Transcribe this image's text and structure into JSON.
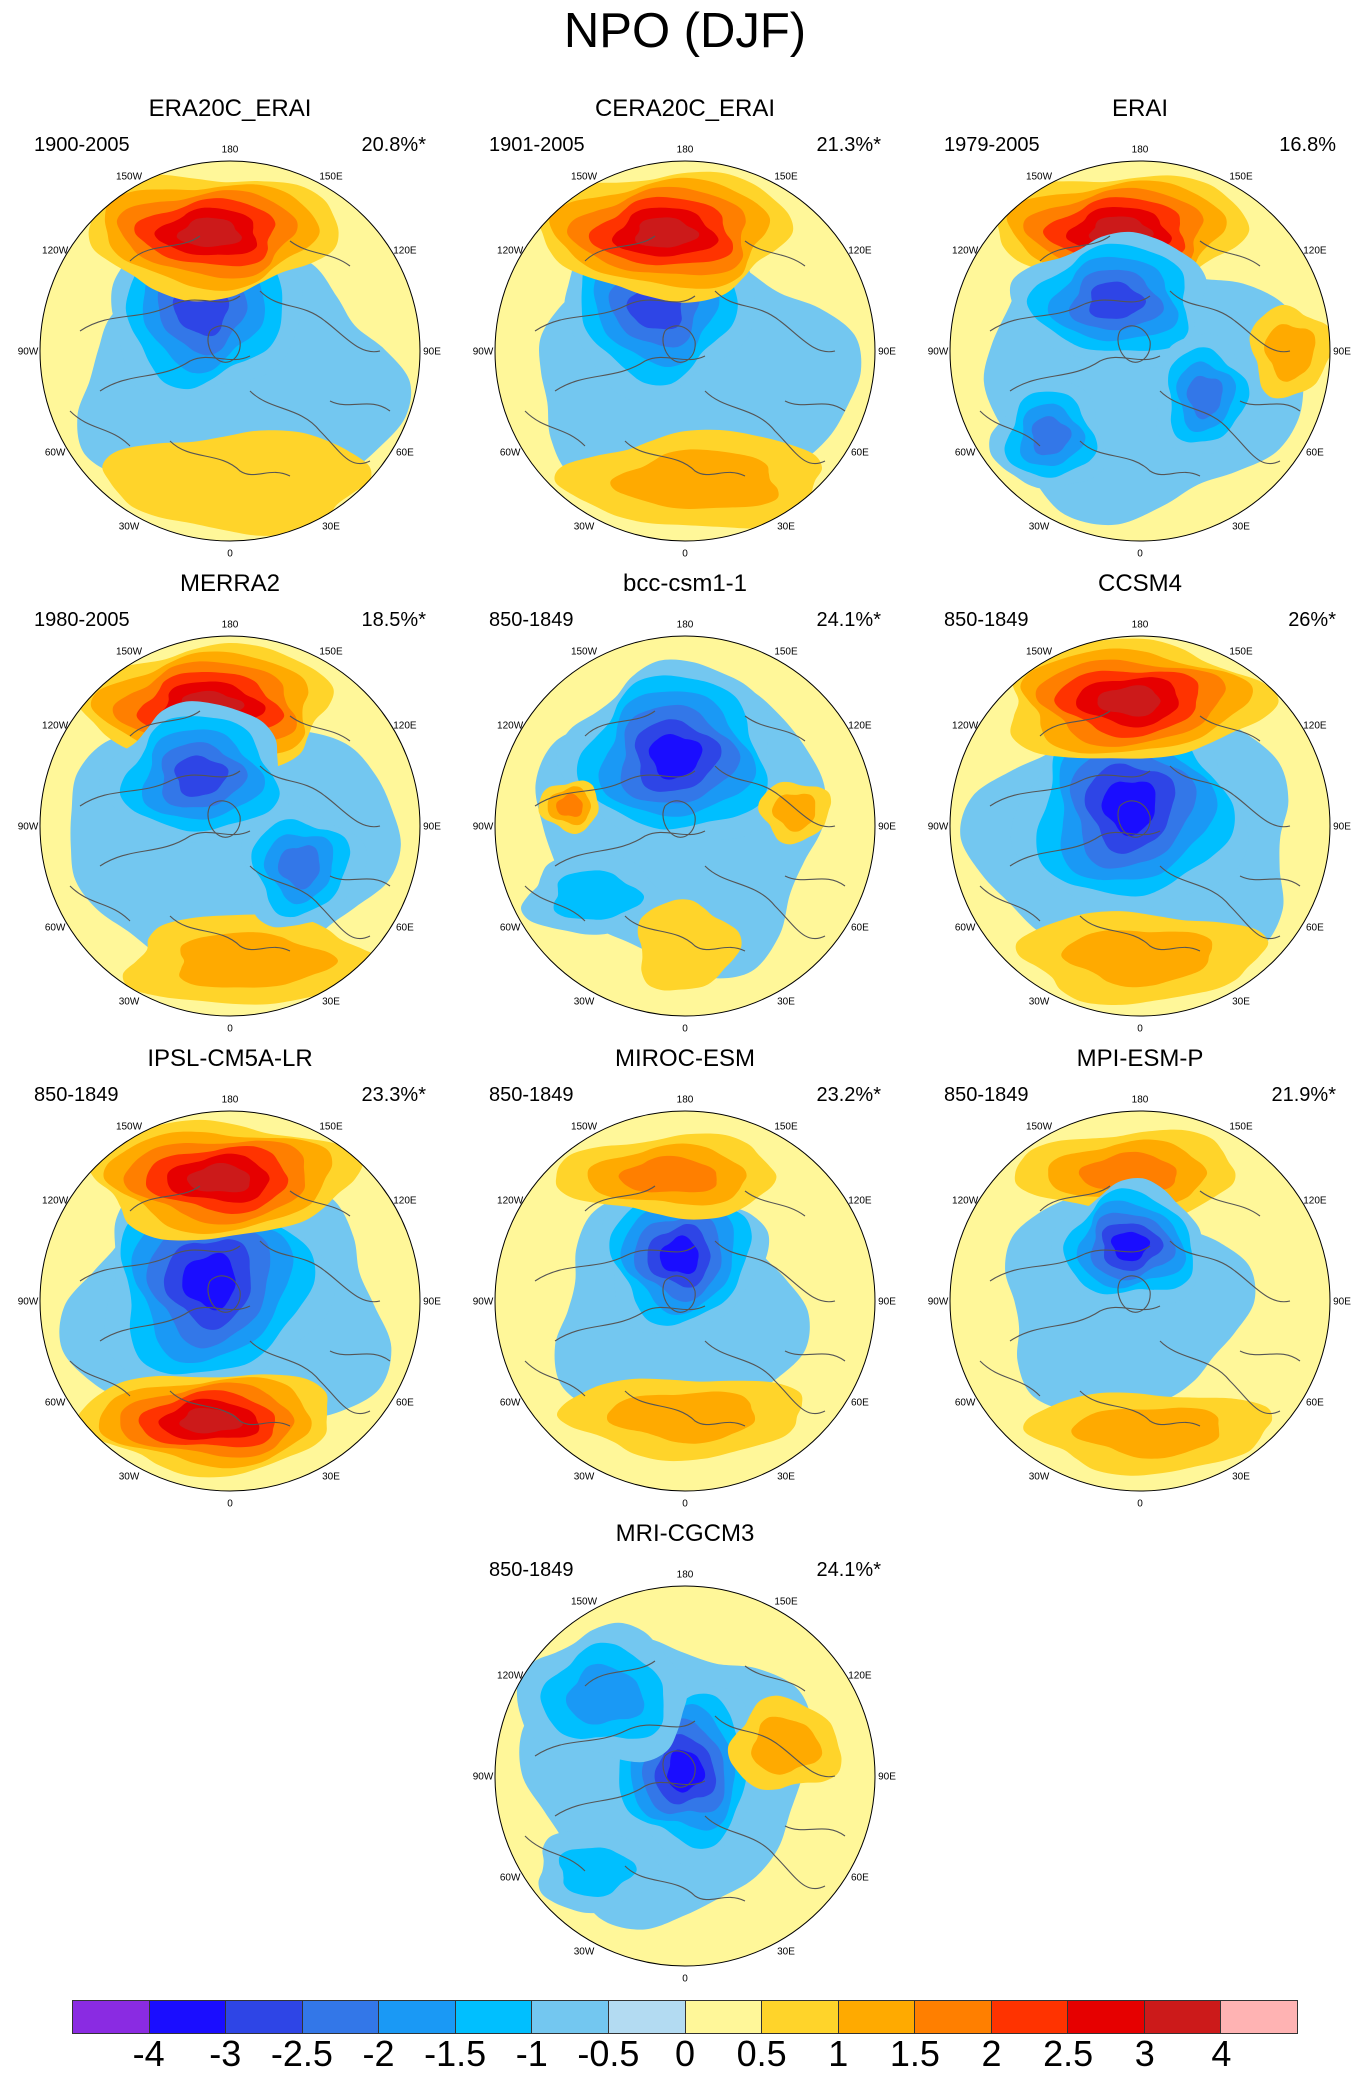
{
  "page": {
    "title": "NPO (DJF)"
  },
  "lon_labels": [
    "180",
    "150E",
    "120E",
    "90E",
    "60E",
    "30E",
    "0",
    "30W",
    "60W",
    "90W",
    "120W",
    "150W"
  ],
  "colorbar": {
    "colors": [
      "#8a2be2",
      "#1a0dff",
      "#2e45e6",
      "#3377e8",
      "#1a99f5",
      "#00bfff",
      "#73c7f0",
      "#b3dbf2",
      "#fff799",
      "#ffd42a",
      "#ffaa00",
      "#ff7f00",
      "#ff3300",
      "#e60000",
      "#cc1a1a",
      "#ffb3b3"
    ],
    "labels": [
      "-4",
      "-3",
      "-2.5",
      "-2",
      "-1.5",
      "-1",
      "-0.5",
      "0",
      "0.5",
      "1",
      "1.5",
      "2",
      "2.5",
      "3",
      "4"
    ]
  },
  "panels": [
    {
      "id": "era20c",
      "name": "ERA20C_ERAI",
      "period": "1900-2005",
      "variance": "20.8%*",
      "field": [
        {
          "t": "H",
          "dx": -20,
          "dy": -118,
          "rx": 125,
          "ry": 60,
          "s": 3.2
        },
        {
          "t": "L",
          "dx": -28,
          "dy": -42,
          "rx": 95,
          "ry": 88,
          "s": -2.8
        },
        {
          "t": "L",
          "dx": 10,
          "dy": 30,
          "rx": 160,
          "ry": 120,
          "s": -0.9
        },
        {
          "t": "H",
          "dx": 10,
          "dy": 130,
          "rx": 130,
          "ry": 50,
          "s": 0.9
        }
      ]
    },
    {
      "id": "cera20c",
      "name": "CERA20C_ERAI",
      "period": "1901-2005",
      "variance": "21.3%*",
      "field": [
        {
          "t": "H",
          "dx": -20,
          "dy": -118,
          "rx": 125,
          "ry": 62,
          "s": 3.4
        },
        {
          "t": "L",
          "dx": -28,
          "dy": -45,
          "rx": 95,
          "ry": 85,
          "s": -2.9
        },
        {
          "t": "L",
          "dx": 5,
          "dy": 20,
          "rx": 160,
          "ry": 120,
          "s": -0.9
        },
        {
          "t": "H",
          "dx": 15,
          "dy": 130,
          "rx": 130,
          "ry": 48,
          "s": 1.0
        }
      ]
    },
    {
      "id": "erai",
      "name": "ERAI",
      "period": "1979-2005",
      "variance": "16.8%",
      "field": [
        {
          "t": "H",
          "dx": -20,
          "dy": -120,
          "rx": 125,
          "ry": 58,
          "s": 3.0
        },
        {
          "t": "L",
          "dx": -25,
          "dy": -50,
          "rx": 95,
          "ry": 65,
          "s": -2.7
        },
        {
          "t": "L",
          "dx": -90,
          "dy": 85,
          "rx": 55,
          "ry": 55,
          "s": -2.0
        },
        {
          "t": "L",
          "dx": 65,
          "dy": 45,
          "rx": 50,
          "ry": 60,
          "s": -2.0
        },
        {
          "t": "L",
          "dx": 0,
          "dy": 30,
          "rx": 160,
          "ry": 130,
          "s": -0.8
        },
        {
          "t": "H",
          "dx": 150,
          "dy": 0,
          "rx": 40,
          "ry": 45,
          "s": 1.0
        }
      ]
    },
    {
      "id": "merra2",
      "name": "MERRA2",
      "period": "1980-2005",
      "variance": "18.5%*",
      "field": [
        {
          "t": "H",
          "dx": -20,
          "dy": -120,
          "rx": 125,
          "ry": 60,
          "s": 3.1
        },
        {
          "t": "L",
          "dx": -30,
          "dy": -50,
          "rx": 90,
          "ry": 70,
          "s": -2.5
        },
        {
          "t": "L",
          "dx": 70,
          "dy": 40,
          "rx": 60,
          "ry": 60,
          "s": -2.2
        },
        {
          "t": "L",
          "dx": 0,
          "dy": 20,
          "rx": 165,
          "ry": 125,
          "s": -0.9
        },
        {
          "t": "H",
          "dx": 20,
          "dy": 135,
          "rx": 125,
          "ry": 45,
          "s": 1.1
        }
      ]
    },
    {
      "id": "bcc",
      "name": "bcc-csm1-1",
      "period": "850-1849",
      "variance": "24.1%*",
      "field": [
        {
          "t": "L",
          "dx": -10,
          "dy": -70,
          "rx": 105,
          "ry": 90,
          "s": -3.8
        },
        {
          "t": "L",
          "dx": 0,
          "dy": 0,
          "rx": 140,
          "ry": 140,
          "s": -0.7
        },
        {
          "t": "L",
          "dx": -90,
          "dy": 70,
          "rx": 70,
          "ry": 40,
          "s": -1.0
        },
        {
          "t": "H",
          "dx": -115,
          "dy": -20,
          "rx": 30,
          "ry": 25,
          "s": 1.5
        },
        {
          "t": "H",
          "dx": 110,
          "dy": -15,
          "rx": 35,
          "ry": 30,
          "s": 1.2
        },
        {
          "t": "H",
          "dx": 0,
          "dy": 120,
          "rx": 50,
          "ry": 45,
          "s": 0.9
        }
      ]
    },
    {
      "id": "ccsm4",
      "name": "CCSM4",
      "period": "850-1849",
      "variance": "26%*",
      "field": [
        {
          "t": "H",
          "dx": -10,
          "dy": -125,
          "rx": 130,
          "ry": 60,
          "s": 3.6
        },
        {
          "t": "L",
          "dx": -10,
          "dy": -20,
          "rx": 110,
          "ry": 110,
          "s": -3.7
        },
        {
          "t": "L",
          "dx": 0,
          "dy": 10,
          "rx": 160,
          "ry": 130,
          "s": -0.8
        },
        {
          "t": "H",
          "dx": 0,
          "dy": 130,
          "rx": 120,
          "ry": 45,
          "s": 1.3
        }
      ]
    },
    {
      "id": "ipsl",
      "name": "IPSL-CM5A-LR",
      "period": "850-1849",
      "variance": "23.3%*",
      "field": [
        {
          "t": "H",
          "dx": -10,
          "dy": -122,
          "rx": 130,
          "ry": 58,
          "s": 3.1
        },
        {
          "t": "L",
          "dx": -20,
          "dy": -20,
          "rx": 110,
          "ry": 110,
          "s": -3.1
        },
        {
          "t": "L",
          "dx": 0,
          "dy": 5,
          "rx": 155,
          "ry": 135,
          "s": -0.7
        },
        {
          "t": "H",
          "dx": -20,
          "dy": 120,
          "rx": 125,
          "ry": 50,
          "s": 3.0
        }
      ]
    },
    {
      "id": "miroc",
      "name": "MIROC-ESM",
      "period": "850-1849",
      "variance": "23.2%*",
      "field": [
        {
          "t": "H",
          "dx": -15,
          "dy": -125,
          "rx": 110,
          "ry": 40,
          "s": 1.7
        },
        {
          "t": "L",
          "dx": -5,
          "dy": -45,
          "rx": 80,
          "ry": 75,
          "s": -3.5
        },
        {
          "t": "L",
          "dx": -10,
          "dy": 10,
          "rx": 120,
          "ry": 120,
          "s": -0.8
        },
        {
          "t": "H",
          "dx": 0,
          "dy": 115,
          "rx": 120,
          "ry": 40,
          "s": 1.2
        }
      ]
    },
    {
      "id": "mpi",
      "name": "MPI-ESM-P",
      "period": "850-1849",
      "variance": "21.9%*",
      "field": [
        {
          "t": "H",
          "dx": -10,
          "dy": -128,
          "rx": 110,
          "ry": 42,
          "s": 1.9
        },
        {
          "t": "L",
          "dx": -10,
          "dy": -55,
          "rx": 75,
          "ry": 60,
          "s": -3.4
        },
        {
          "t": "L",
          "dx": -20,
          "dy": 0,
          "rx": 120,
          "ry": 110,
          "s": -0.8
        },
        {
          "t": "H",
          "dx": 10,
          "dy": 130,
          "rx": 120,
          "ry": 40,
          "s": 1.1
        }
      ]
    },
    {
      "id": "mri",
      "name": "MRI-CGCM3",
      "period": "850-1849",
      "variance": "24.1%*",
      "field": [
        {
          "t": "L",
          "dx": 0,
          "dy": -5,
          "rx": 75,
          "ry": 85,
          "s": -3.7
        },
        {
          "t": "L",
          "dx": -80,
          "dy": -80,
          "rx": 85,
          "ry": 65,
          "s": -1.5
        },
        {
          "t": "L",
          "dx": -90,
          "dy": 95,
          "rx": 60,
          "ry": 40,
          "s": -1.0
        },
        {
          "t": "L",
          "dx": -20,
          "dy": 0,
          "rx": 140,
          "ry": 140,
          "s": -0.6
        },
        {
          "t": "H",
          "dx": 100,
          "dy": -30,
          "rx": 55,
          "ry": 45,
          "s": 1.2
        }
      ]
    }
  ]
}
